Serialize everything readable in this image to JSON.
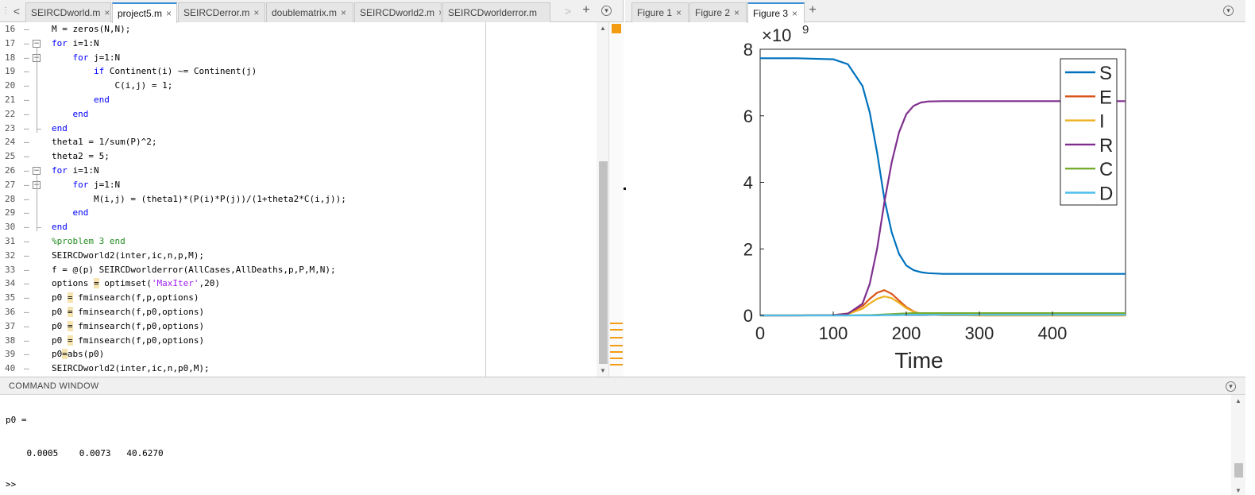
{
  "editor": {
    "tabs": [
      {
        "label": "SEIRCDworld.m",
        "active": false
      },
      {
        "label": "project5.m",
        "active": true
      },
      {
        "label": "SEIRCDerror.m",
        "active": false
      },
      {
        "label": "doublematrix.m",
        "active": false
      },
      {
        "label": "SEIRCDworld2.m",
        "active": false
      },
      {
        "label": "SEIRCDworlderror.m",
        "active": false
      }
    ],
    "scroll_left_glyph": "<",
    "scroll_right_glyph": ">",
    "add_tab_glyph": "+",
    "menu_glyph": "▾",
    "lines": [
      {
        "n": "16",
        "code": "M = zeros(N,N);"
      },
      {
        "n": "17",
        "code": "for i=1:N"
      },
      {
        "n": "18",
        "code": "    for j=1:N"
      },
      {
        "n": "19",
        "code": "        if Continent(i) ~= Continent(j)"
      },
      {
        "n": "20",
        "code": "            C(i,j) = 1;"
      },
      {
        "n": "21",
        "code": "        end"
      },
      {
        "n": "22",
        "code": "    end"
      },
      {
        "n": "23",
        "code": "end"
      },
      {
        "n": "24",
        "code": "theta1 = 1/sum(P)^2;"
      },
      {
        "n": "25",
        "code": "theta2 = 5;"
      },
      {
        "n": "26",
        "code": "for i=1:N"
      },
      {
        "n": "27",
        "code": "    for j=1:N"
      },
      {
        "n": "28",
        "code": "        M(i,j) = (theta1)*(P(i)*P(j))/(1+theta2*C(i,j));"
      },
      {
        "n": "29",
        "code": "    end"
      },
      {
        "n": "30",
        "code": "end"
      },
      {
        "n": "31",
        "code": "%problem 3 end"
      },
      {
        "n": "32",
        "code": "SEIRCDworld2(inter,ic,n,p,M);"
      },
      {
        "n": "33",
        "code": "f = @(p) SEIRCDworlderror(AllCases,AllDeaths,p,P,M,N);"
      },
      {
        "n": "34",
        "code": "options = optimset('MaxIter',20)"
      },
      {
        "n": "35",
        "code": "p0 = fminsearch(f,p,options)"
      },
      {
        "n": "36",
        "code": "p0 = fminsearch(f,p0,options)"
      },
      {
        "n": "37",
        "code": "p0 = fminsearch(f,p0,options)"
      },
      {
        "n": "38",
        "code": "p0 = fminsearch(f,p0,options)"
      },
      {
        "n": "39",
        "code": "p0=abs(p0)"
      },
      {
        "n": "40",
        "code": "SEIRCDworld2(inter,ic,n,p0,M);"
      }
    ],
    "dash_glyph": "–",
    "fold_glyph": "−"
  },
  "figure": {
    "tabs": [
      {
        "label": "Figure 1",
        "active": false
      },
      {
        "label": "Figure 2",
        "active": false
      },
      {
        "label": "Figure 3",
        "active": true
      }
    ],
    "add_tab_glyph": "+",
    "menu_glyph": "▾",
    "exponent_label": "×10",
    "exponent_power": "9"
  },
  "chart_data": {
    "type": "line",
    "title": "",
    "xlabel": "Time",
    "ylabel": "",
    "xlim": [
      0,
      500
    ],
    "ylim": [
      0,
      8
    ],
    "y_scale_multiplier": 1000000000,
    "xticks": [
      "0",
      "100",
      "200",
      "300",
      "400"
    ],
    "yticks": [
      "0",
      "2",
      "4",
      "6",
      "8"
    ],
    "grid": false,
    "legend_position": "top-right",
    "x": [
      0,
      50,
      100,
      120,
      140,
      150,
      160,
      170,
      180,
      190,
      200,
      210,
      220,
      230,
      250,
      300,
      400,
      500
    ],
    "series": [
      {
        "name": "S",
        "color": "#0072BD",
        "values": [
          7.73,
          7.73,
          7.7,
          7.55,
          6.9,
          6.1,
          4.9,
          3.5,
          2.5,
          1.85,
          1.5,
          1.36,
          1.3,
          1.27,
          1.25,
          1.25,
          1.25,
          1.25
        ]
      },
      {
        "name": "E",
        "color": "#D95319",
        "values": [
          0,
          0,
          0.01,
          0.06,
          0.28,
          0.5,
          0.68,
          0.76,
          0.65,
          0.45,
          0.25,
          0.12,
          0.05,
          0.02,
          0.01,
          0,
          0,
          0
        ]
      },
      {
        "name": "I",
        "color": "#EDB120",
        "values": [
          0,
          0,
          0.01,
          0.04,
          0.2,
          0.36,
          0.5,
          0.57,
          0.52,
          0.38,
          0.22,
          0.11,
          0.05,
          0.02,
          0.01,
          0,
          0,
          0
        ]
      },
      {
        "name": "R",
        "color": "#7E2F8E",
        "values": [
          0,
          0,
          0.01,
          0.05,
          0.35,
          0.95,
          2.0,
          3.4,
          4.6,
          5.5,
          6.05,
          6.3,
          6.4,
          6.43,
          6.44,
          6.44,
          6.44,
          6.44
        ]
      },
      {
        "name": "C",
        "color": "#77AC30",
        "values": [
          0,
          0,
          0,
          0,
          0.01,
          0.01,
          0.02,
          0.03,
          0.04,
          0.05,
          0.06,
          0.07,
          0.07,
          0.07,
          0.07,
          0.07,
          0.07,
          0.07
        ]
      },
      {
        "name": "D",
        "color": "#4DBEEE",
        "values": [
          0,
          0,
          0,
          0,
          0,
          0,
          0,
          0.01,
          0.01,
          0.01,
          0.02,
          0.02,
          0.02,
          0.02,
          0.02,
          0.02,
          0.02,
          0.02
        ]
      }
    ]
  },
  "command_window": {
    "title": "COMMAND WINDOW",
    "menu_glyph": "▾",
    "output_lines": [
      "p0 =",
      "    0.0005    0.0073   40.6270"
    ],
    "prompt": ">>"
  }
}
